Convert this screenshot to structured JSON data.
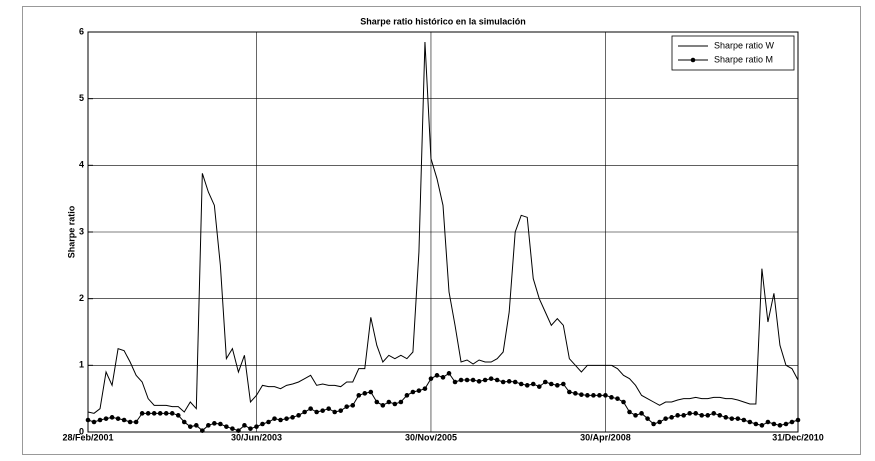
{
  "chart_data": {
    "type": "line",
    "title": "Sharpe ratio histórico en la simulación",
    "ylabel": "Sharpe ratio",
    "categories": [
      "28/Feb/2001",
      null,
      null,
      null,
      null,
      null,
      null,
      null,
      null,
      null,
      null,
      null,
      null,
      null,
      null,
      null,
      null,
      null,
      null,
      null,
      null,
      null,
      null,
      null,
      null,
      null,
      null,
      null,
      "30/Jun/2003",
      null,
      null,
      null,
      null,
      null,
      null,
      null,
      null,
      null,
      null,
      null,
      null,
      null,
      null,
      null,
      null,
      null,
      null,
      null,
      null,
      null,
      null,
      null,
      null,
      null,
      null,
      null,
      null,
      "30/Nov/2005",
      null,
      null,
      null,
      null,
      null,
      null,
      null,
      null,
      null,
      null,
      null,
      null,
      null,
      null,
      null,
      null,
      null,
      null,
      null,
      null,
      null,
      null,
      null,
      null,
      null,
      null,
      null,
      null,
      "30/Apr/2008",
      null,
      null,
      null,
      null,
      null,
      null,
      null,
      null,
      null,
      null,
      null,
      null,
      null,
      null,
      null,
      null,
      null,
      null,
      null,
      null,
      null,
      null,
      null,
      null,
      null,
      null,
      null,
      null,
      null,
      null,
      null,
      "31/Dec/2010"
    ],
    "series": [
      {
        "name": "Sharpe ratio W",
        "color": "#000000",
        "marker": false,
        "values": [
          0.3,
          0.28,
          0.35,
          0.9,
          0.7,
          1.25,
          1.22,
          1.05,
          0.85,
          0.75,
          0.5,
          0.4,
          0.4,
          0.4,
          0.38,
          0.38,
          0.3,
          0.45,
          0.35,
          3.88,
          3.6,
          3.4,
          2.5,
          1.1,
          1.25,
          0.9,
          1.15,
          0.45,
          0.55,
          0.7,
          0.68,
          0.68,
          0.65,
          0.7,
          0.72,
          0.75,
          0.8,
          0.85,
          0.7,
          0.72,
          0.7,
          0.7,
          0.68,
          0.75,
          0.75,
          0.95,
          0.95,
          1.72,
          1.3,
          1.05,
          1.15,
          1.1,
          1.15,
          1.1,
          1.2,
          2.7,
          5.85,
          4.1,
          3.8,
          3.4,
          2.1,
          1.6,
          1.05,
          1.08,
          1.02,
          1.08,
          1.05,
          1.05,
          1.1,
          1.2,
          1.8,
          3.0,
          3.25,
          3.22,
          2.3,
          2.0,
          1.8,
          1.6,
          1.7,
          1.6,
          1.1,
          1.0,
          0.9,
          1.0,
          1.0,
          1.0,
          1.0,
          1.0,
          0.95,
          0.85,
          0.8,
          0.7,
          0.55,
          0.5,
          0.45,
          0.4,
          0.45,
          0.45,
          0.48,
          0.5,
          0.5,
          0.52,
          0.5,
          0.5,
          0.52,
          0.52,
          0.5,
          0.5,
          0.48,
          0.45,
          0.42,
          0.42,
          2.45,
          1.65,
          2.08,
          1.3,
          1.0,
          0.95,
          0.78
        ]
      },
      {
        "name": "Sharpe ratio M",
        "color": "#000000",
        "marker": true,
        "values": [
          0.18,
          0.15,
          0.18,
          0.2,
          0.22,
          0.2,
          0.18,
          0.15,
          0.15,
          0.28,
          0.28,
          0.28,
          0.28,
          0.28,
          0.28,
          0.25,
          0.15,
          0.08,
          0.1,
          0.02,
          0.1,
          0.13,
          0.12,
          0.08,
          0.05,
          0.02,
          0.1,
          0.05,
          0.08,
          0.12,
          0.15,
          0.2,
          0.18,
          0.2,
          0.22,
          0.25,
          0.3,
          0.35,
          0.3,
          0.32,
          0.35,
          0.3,
          0.32,
          0.38,
          0.4,
          0.55,
          0.58,
          0.6,
          0.45,
          0.4,
          0.45,
          0.42,
          0.45,
          0.55,
          0.6,
          0.62,
          0.65,
          0.8,
          0.85,
          0.82,
          0.88,
          0.75,
          0.78,
          0.78,
          0.78,
          0.76,
          0.78,
          0.8,
          0.78,
          0.75,
          0.76,
          0.75,
          0.72,
          0.7,
          0.72,
          0.68,
          0.75,
          0.72,
          0.7,
          0.72,
          0.6,
          0.58,
          0.56,
          0.55,
          0.55,
          0.55,
          0.55,
          0.52,
          0.5,
          0.45,
          0.3,
          0.25,
          0.28,
          0.2,
          0.12,
          0.15,
          0.2,
          0.22,
          0.25,
          0.25,
          0.28,
          0.28,
          0.25,
          0.25,
          0.28,
          0.25,
          0.22,
          0.2,
          0.2,
          0.18,
          0.15,
          0.12,
          0.1,
          0.15,
          0.12,
          0.1,
          0.12,
          0.15,
          0.18
        ]
      }
    ],
    "ylim": [
      0,
      6
    ],
    "yticks": [
      0,
      1,
      2,
      3,
      4,
      5,
      6
    ],
    "grid": true,
    "legend": "upper right"
  }
}
